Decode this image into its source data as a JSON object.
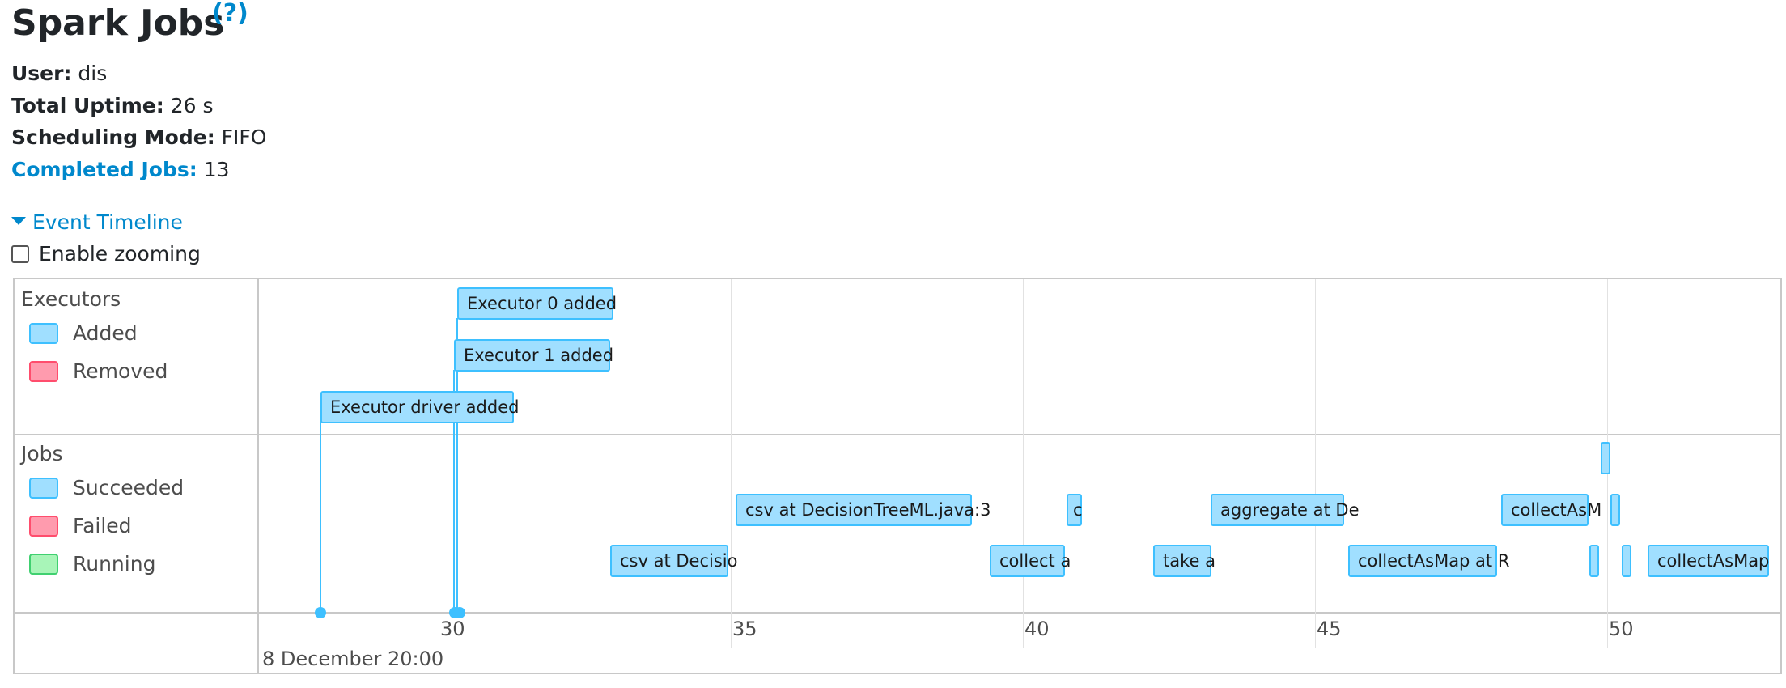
{
  "page": {
    "title": "Spark Jobs",
    "help_link": "(?)"
  },
  "info": {
    "user_label": "User:",
    "user_value": "dis",
    "uptime_label": "Total Uptime:",
    "uptime_value": "26 s",
    "scheduling_label": "Scheduling Mode:",
    "scheduling_value": "FIFO",
    "completed_label": "Completed Jobs:",
    "completed_value": "13"
  },
  "timeline": {
    "toggle_label": "Event Timeline",
    "zoom_label": "Enable zooming",
    "zoom_checked": false,
    "executors_group": {
      "title": "Executors",
      "legend": [
        "Added",
        "Removed"
      ]
    },
    "jobs_group": {
      "title": "Jobs",
      "legend": [
        "Succeeded",
        "Failed",
        "Running"
      ]
    },
    "executor_events": [
      "Executor 0 added",
      "Executor 1 added",
      "Executor driver added"
    ],
    "job_events": [
      "csv at DecisionTreeML.java:3",
      "c",
      "aggregate at De",
      "collectAsM",
      "csv at Decisio",
      "collect a",
      "take a",
      "collectAsMap at R",
      "collectAsMap",
      "",
      "",
      "",
      ""
    ],
    "axis_ticks": [
      "30",
      "35",
      "40",
      "45",
      "50"
    ],
    "date_label": "8 December 20:00",
    "colors": {
      "added": "#A0DFFF",
      "removed": "#FF9BAE",
      "succeeded": "#A0DFFF",
      "failed": "#FF9BAE",
      "running": "#A8F5B8",
      "accent": "#0088cc"
    }
  }
}
